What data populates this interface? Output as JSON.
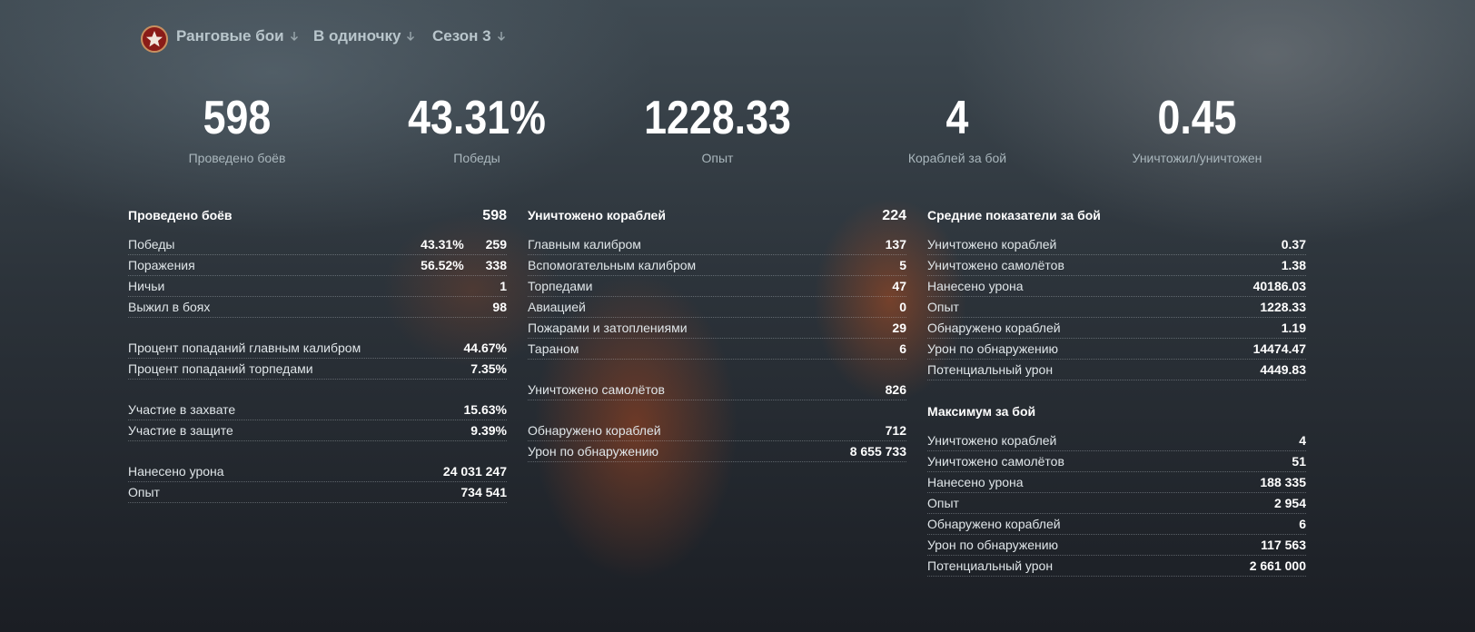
{
  "nav": {
    "items": [
      "Ранговые бои",
      "В одиночку",
      "Сезон 3"
    ]
  },
  "summary": [
    {
      "value": "598",
      "label": "Проведено боёв"
    },
    {
      "value": "43.31%",
      "label": "Победы"
    },
    {
      "value": "1228.33",
      "label": "Опыт"
    },
    {
      "value": "4",
      "label": "Кораблей за бой"
    },
    {
      "value": "0.45",
      "label": "Уничтожил/уничтожен"
    }
  ],
  "columns": [
    {
      "blocks": [
        {
          "title": "Проведено боёв",
          "total": "598",
          "rows": [
            {
              "label": "Победы",
              "values": [
                "43.31%",
                "259"
              ]
            },
            {
              "label": "Поражения",
              "values": [
                "56.52%",
                "338"
              ]
            },
            {
              "label": "Ничьи",
              "values": [
                "1"
              ]
            },
            {
              "label": "Выжил в боях",
              "values": [
                "98"
              ]
            }
          ]
        },
        {
          "rows": [
            {
              "label": "Процент попаданий главным калибром",
              "values": [
                "44.67%"
              ]
            },
            {
              "label": "Процент попаданий торпедами",
              "values": [
                "7.35%"
              ]
            }
          ]
        },
        {
          "rows": [
            {
              "label": "Участие в захвате",
              "values": [
                "15.63%"
              ]
            },
            {
              "label": "Участие в защите",
              "values": [
                "9.39%"
              ]
            }
          ]
        },
        {
          "rows": [
            {
              "label": "Нанесено урона",
              "values": [
                "24 031 247"
              ]
            },
            {
              "label": "Опыт",
              "values": [
                "734 541"
              ]
            }
          ]
        }
      ]
    },
    {
      "blocks": [
        {
          "title": "Уничтожено кораблей",
          "total": "224",
          "rows": [
            {
              "label": "Главным калибром",
              "values": [
                "137"
              ]
            },
            {
              "label": "Вспомогательным калибром",
              "values": [
                "5"
              ]
            },
            {
              "label": "Торпедами",
              "values": [
                "47"
              ]
            },
            {
              "label": "Авиацией",
              "values": [
                "0"
              ]
            },
            {
              "label": "Пожарами и затоплениями",
              "values": [
                "29"
              ]
            },
            {
              "label": "Тараном",
              "values": [
                "6"
              ]
            }
          ]
        },
        {
          "rows": [
            {
              "label": "Уничтожено самолётов",
              "values": [
                "826"
              ]
            }
          ]
        },
        {
          "rows": [
            {
              "label": "Обнаружено кораблей",
              "values": [
                "712"
              ]
            },
            {
              "label": "Урон по обнаружению",
              "values": [
                "8 655 733"
              ]
            }
          ]
        }
      ]
    },
    {
      "blocks": [
        {
          "title": "Средние показатели за бой",
          "rows": [
            {
              "label": "Уничтожено кораблей",
              "values": [
                "0.37"
              ]
            },
            {
              "label": "Уничтожено самолётов",
              "values": [
                "1.38"
              ]
            },
            {
              "label": "Нанесено урона",
              "values": [
                "40186.03"
              ]
            },
            {
              "label": "Опыт",
              "values": [
                "1228.33"
              ]
            },
            {
              "label": "Обнаружено кораблей",
              "values": [
                "1.19"
              ]
            },
            {
              "label": "Урон по обнаружению",
              "values": [
                "14474.47"
              ]
            },
            {
              "label": "Потенциальный урон",
              "values": [
                "4449.83"
              ]
            }
          ]
        },
        {
          "title": "Максимум за бой",
          "rows": [
            {
              "label": "Уничтожено кораблей",
              "values": [
                "4"
              ]
            },
            {
              "label": "Уничтожено самолётов",
              "values": [
                "51"
              ]
            },
            {
              "label": "Нанесено урона",
              "values": [
                "188 335"
              ]
            },
            {
              "label": "Опыт",
              "values": [
                "2 954"
              ]
            },
            {
              "label": "Обнаружено кораблей",
              "values": [
                "6"
              ]
            },
            {
              "label": "Урон по обнаружению",
              "values": [
                "117 563"
              ]
            },
            {
              "label": "Потенциальный урон",
              "values": [
                "2 661 000"
              ]
            }
          ]
        }
      ]
    }
  ]
}
